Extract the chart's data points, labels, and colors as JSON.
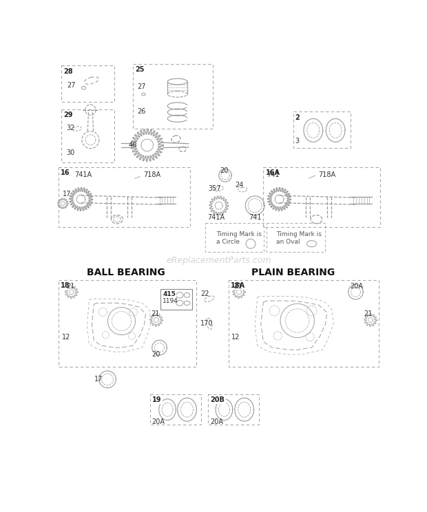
{
  "bg_color": "#ffffff",
  "line_color": "#999999",
  "text_color": "#333333",
  "watermark_color": "#cccccc",
  "watermark_text": "eReplacementParts.com",
  "ball_bearing_title": "BALL BEARING",
  "plain_bearing_title": "PLAIN BEARING",
  "title_fontsize": 10,
  "label_fontsize": 7
}
